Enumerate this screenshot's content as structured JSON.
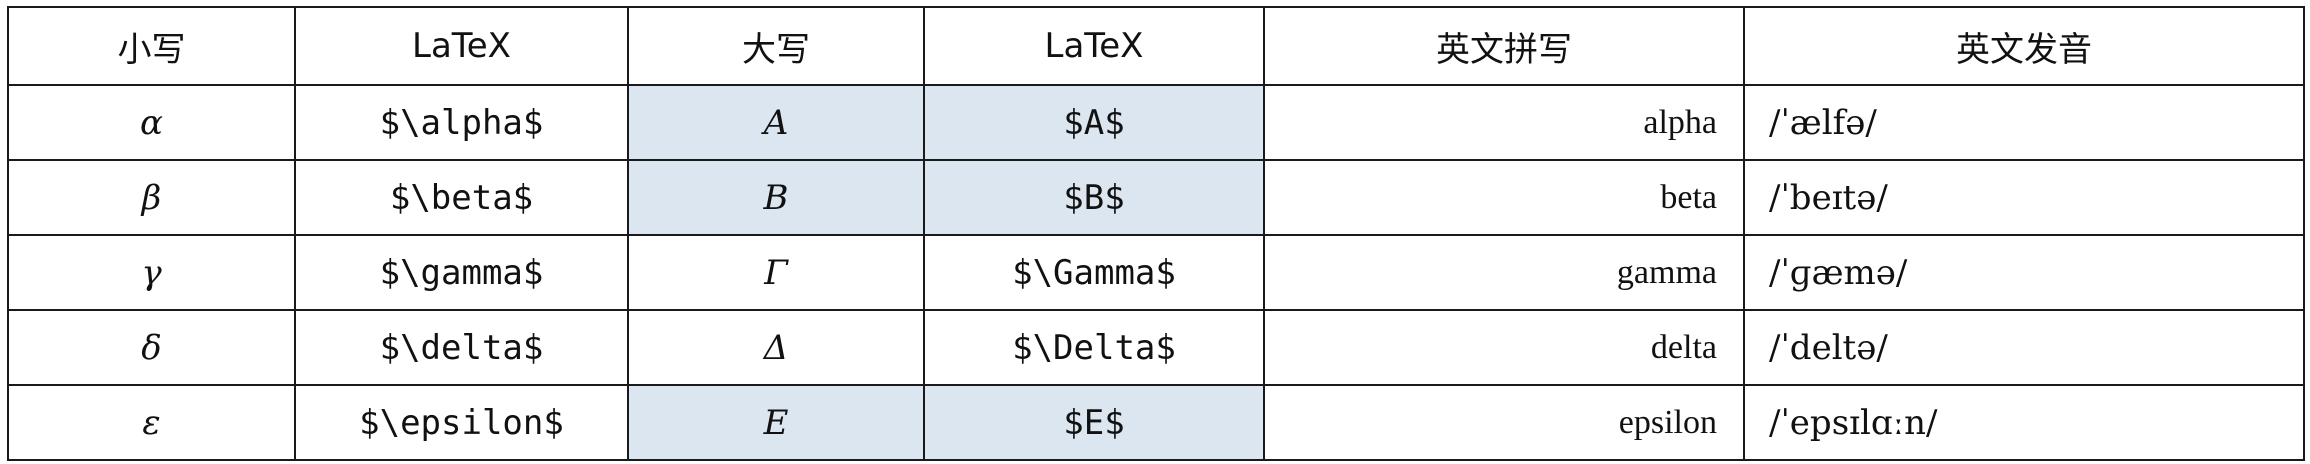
{
  "headers": [
    "小写",
    "LaTeX",
    "大写",
    "LaTeX",
    "英文拼写",
    "英文发音"
  ],
  "rows": [
    {
      "lower": "α",
      "lower_tex": "$\\alpha$",
      "upper": "A",
      "upper_tex": "$A$",
      "spelling": "alpha",
      "pronunciation": "/ˈælfə/"
    },
    {
      "lower": "β",
      "lower_tex": "$\\beta$",
      "upper": "B",
      "upper_tex": "$B$",
      "spelling": "beta",
      "pronunciation": "/ˈbeɪtə/"
    },
    {
      "lower": "γ",
      "lower_tex": "$\\gamma$",
      "upper": "Γ",
      "upper_tex": "$\\Gamma$",
      "spelling": "gamma",
      "pronunciation": "/ˈɡæmə/"
    },
    {
      "lower": "δ",
      "lower_tex": "$\\delta$",
      "upper": "Δ",
      "upper_tex": "$\\Delta$",
      "spelling": "delta",
      "pronunciation": "/ˈdeltə/"
    },
    {
      "lower": "ε",
      "lower_tex": "$\\epsilon$",
      "upper": "E",
      "upper_tex": "$E$",
      "spelling": "epsilon",
      "pronunciation": "/ˈepsɪlɑːn/"
    }
  ],
  "highlight_color": "#dce6f1",
  "border_color": "#1a1a1a"
}
